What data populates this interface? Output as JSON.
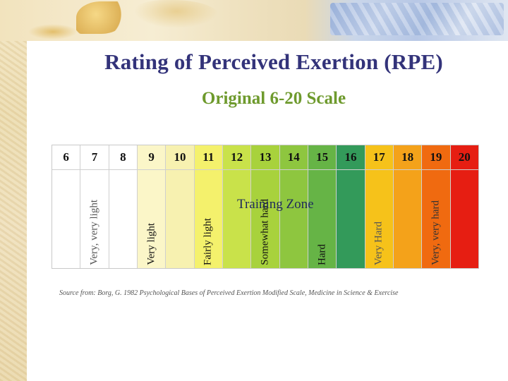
{
  "slide": {
    "title": "Rating of Perceived Exertion (RPE)",
    "subtitle": "Original 6-20 Scale",
    "zone_label": "Training Zone",
    "source": "Source from: Borg, G. 1982 Psychological Bases of Perceived Exertion Modified Scale, Medicine in Science & Exercise",
    "colors": {
      "title": "#33337a",
      "subtitle": "#6e9a2d"
    }
  },
  "scale": [
    {
      "num": "6",
      "label": "",
      "bg": "#ffffff",
      "fg": "#111111"
    },
    {
      "num": "7",
      "label": "Very, very light",
      "bg": "#ffffff",
      "fg": "#555555"
    },
    {
      "num": "8",
      "label": "",
      "bg": "#ffffff",
      "fg": "#111111"
    },
    {
      "num": "9",
      "label": "Very light",
      "bg": "#fbf6c8",
      "fg": "#111111"
    },
    {
      "num": "10",
      "label": "",
      "bg": "#f7f1b0",
      "fg": "#111111"
    },
    {
      "num": "11",
      "label": "Fairly light",
      "bg": "#f4f16c",
      "fg": "#111111"
    },
    {
      "num": "12",
      "label": "",
      "bg": "#c9e24a",
      "fg": "#111111"
    },
    {
      "num": "13",
      "label": "Somewhat hard",
      "bg": "#a8d23c",
      "fg": "#111111"
    },
    {
      "num": "14",
      "label": "",
      "bg": "#8ec63f",
      "fg": "#111111"
    },
    {
      "num": "15",
      "label": "Hard",
      "bg": "#66b446",
      "fg": "#111111"
    },
    {
      "num": "16",
      "label": "",
      "bg": "#339a5a",
      "fg": "#111111"
    },
    {
      "num": "17",
      "label": "Very Hard",
      "bg": "#f6c21a",
      "fg": "#555555"
    },
    {
      "num": "18",
      "label": "",
      "bg": "#f4a21a",
      "fg": "#111111"
    },
    {
      "num": "19",
      "label": "Very, very hard",
      "bg": "#f06a10",
      "fg": "#333333"
    },
    {
      "num": "20",
      "label": "",
      "bg": "#e61e12",
      "fg": "#111111"
    }
  ]
}
